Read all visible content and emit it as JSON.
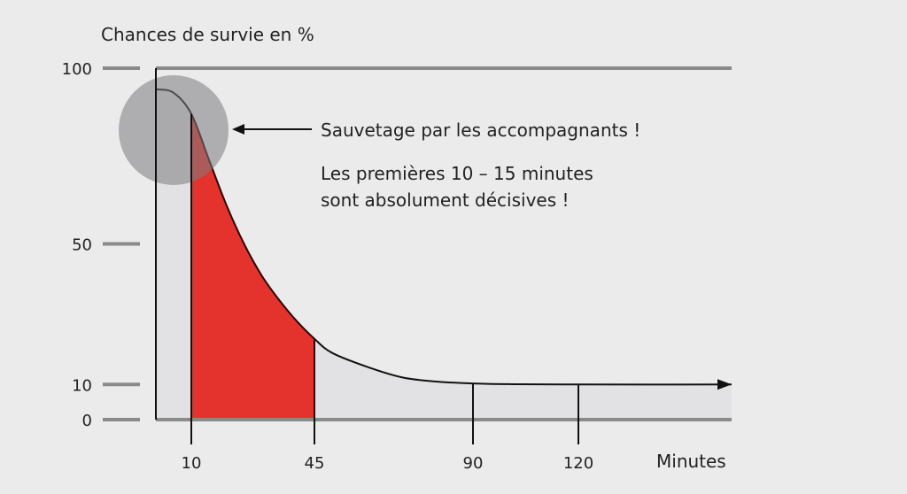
{
  "chart_data": {
    "type": "area",
    "title": "",
    "ylabel": "Chances de survie en %",
    "xlabel": "Minutes",
    "ylim": [
      0,
      100
    ],
    "yticks": [
      {
        "value": 0,
        "label": "0"
      },
      {
        "value": 10,
        "label": "10"
      },
      {
        "value": 50,
        "label": "50"
      },
      {
        "value": 100,
        "label": "100"
      }
    ],
    "xticks": [
      {
        "value": 10,
        "label": "10"
      },
      {
        "value": 45,
        "label": "45"
      },
      {
        "value": 90,
        "label": "90"
      },
      {
        "value": 120,
        "label": "120"
      }
    ],
    "series": [
      {
        "x": [
          0,
          5,
          10,
          15,
          20,
          25,
          30,
          35,
          40,
          45,
          50,
          60,
          70,
          80,
          90,
          100,
          120,
          150
        ],
        "values": [
          94,
          93,
          87,
          74,
          61,
          50,
          41,
          34,
          28,
          23,
          19,
          15,
          12,
          10.8,
          10.3,
          10.1,
          10,
          10
        ]
      }
    ],
    "highlight_range": [
      10,
      45
    ],
    "highlight_color": "#e4332c",
    "area_color": "#e2e2e4",
    "annotations": {
      "arrow_label": "Sauvetage par les accompagnants !",
      "note_line1": "Les premières 10 – 15 minutes",
      "note_line2": "sont absolument décisives !"
    }
  }
}
